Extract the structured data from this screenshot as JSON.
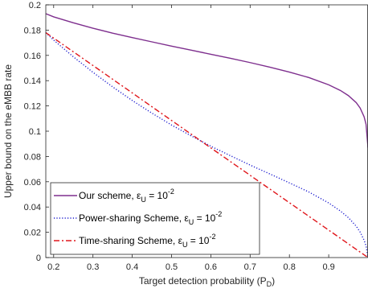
{
  "chart_data": {
    "type": "line",
    "title": "",
    "xlabel": "Target detection probability (P",
    "xlabel_sub": "D",
    "xlabel_close": ")",
    "ylabel": "Upper bound on the eMBB rate",
    "xlim": [
      0.18,
      1.0
    ],
    "ylim": [
      0,
      0.2
    ],
    "xticks": [
      0.2,
      0.3,
      0.4,
      0.5,
      0.6,
      0.7,
      0.8,
      0.9
    ],
    "yticks": [
      0,
      0.02,
      0.04,
      0.06,
      0.08,
      0.1,
      0.12,
      0.14,
      0.16,
      0.18,
      0.2
    ],
    "grid": false,
    "legend_position": "bottom-left",
    "series": [
      {
        "name": "Our scheme, ε",
        "label_sub": "U",
        "label_mid": " = 10",
        "label_sup": "-2",
        "color": "#7E2F8E",
        "style": "solid",
        "x": [
          0.18,
          0.2,
          0.25,
          0.3,
          0.35,
          0.4,
          0.45,
          0.5,
          0.55,
          0.6,
          0.65,
          0.7,
          0.75,
          0.8,
          0.85,
          0.9,
          0.93,
          0.95,
          0.97,
          0.98,
          0.99,
          0.995,
          1.0
        ],
        "y": [
          0.193,
          0.1905,
          0.1858,
          0.1815,
          0.1776,
          0.1741,
          0.1707,
          0.1673,
          0.1641,
          0.1609,
          0.1577,
          0.1543,
          0.1507,
          0.1468,
          0.1424,
          0.1367,
          0.1322,
          0.1282,
          0.1226,
          0.1183,
          0.1115,
          0.1055,
          0.087
        ]
      },
      {
        "name": "Power-sharing Scheme, ε",
        "label_sub": "U",
        "label_mid": " = 10",
        "label_sup": "-2",
        "color": "#1F1FD0",
        "style": "dotted",
        "x": [
          0.18,
          0.2,
          0.25,
          0.3,
          0.35,
          0.4,
          0.45,
          0.5,
          0.55,
          0.6,
          0.65,
          0.7,
          0.75,
          0.8,
          0.85,
          0.9,
          0.93,
          0.95,
          0.97,
          0.98,
          0.99,
          0.995,
          1.0
        ],
        "y": [
          0.178,
          0.1721,
          0.1589,
          0.1466,
          0.1351,
          0.1243,
          0.1143,
          0.1049,
          0.0963,
          0.0881,
          0.0806,
          0.0732,
          0.0662,
          0.0591,
          0.0518,
          0.0432,
          0.0368,
          0.0316,
          0.0248,
          0.0202,
          0.0138,
          0.0093,
          0.0
        ]
      },
      {
        "name": "Time-sharing Scheme, ε",
        "label_sub": "U",
        "label_mid": " = 10",
        "label_sup": "-2",
        "color": "#E0161B",
        "style": "dashdot",
        "x": [
          0.18,
          0.3,
          0.4,
          0.5,
          0.6,
          0.7,
          0.8,
          0.9,
          1.0
        ],
        "y": [
          0.178,
          0.152,
          0.1303,
          0.1085,
          0.0868,
          0.0651,
          0.0434,
          0.0217,
          0.0
        ]
      }
    ]
  }
}
